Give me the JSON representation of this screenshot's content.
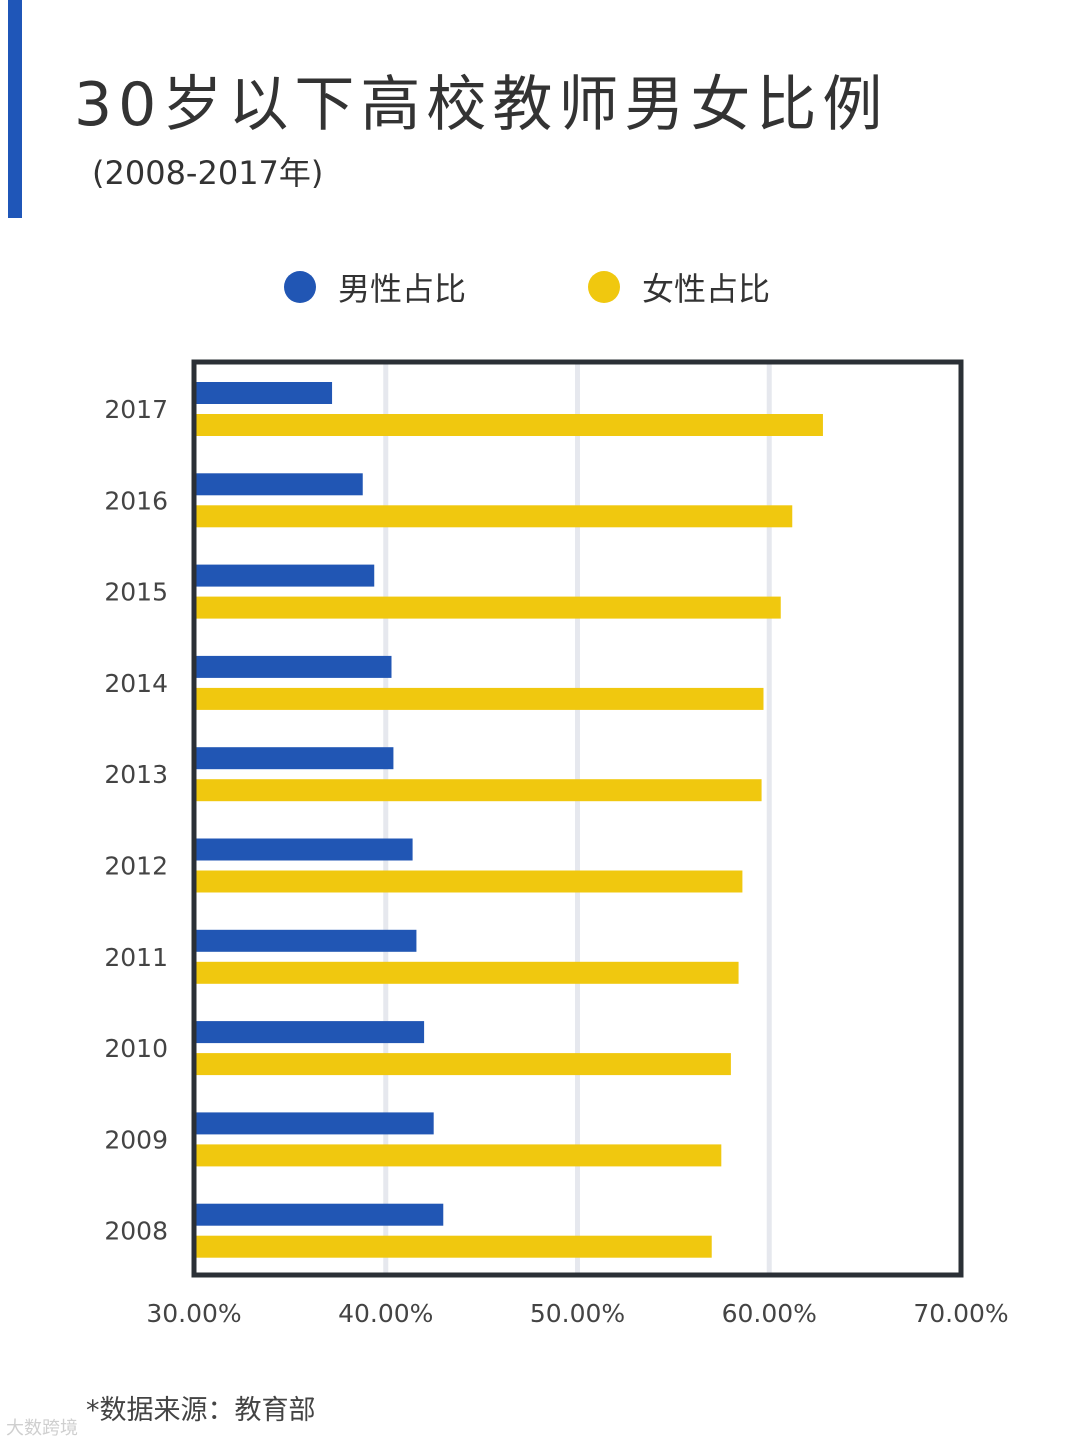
{
  "colors": {
    "accent": "#1f56b8",
    "male": "#2156b4",
    "female": "#f0c80f",
    "frame": "#2b3036",
    "grid": "#e6e8ee"
  },
  "chart_data": {
    "type": "bar",
    "orientation": "horizontal",
    "title": "30岁以下高校教师男女比例",
    "subtitle": "(2008-2017年)",
    "categories": [
      "2017",
      "2016",
      "2015",
      "2014",
      "2013",
      "2012",
      "2011",
      "2010",
      "2009",
      "2008"
    ],
    "series": [
      {
        "name": "男性占比",
        "values": [
          37.2,
          38.8,
          39.4,
          40.3,
          40.4,
          41.4,
          41.6,
          42.0,
          42.5,
          43.0
        ]
      },
      {
        "name": "女性占比",
        "values": [
          62.8,
          61.2,
          60.6,
          59.7,
          59.6,
          58.6,
          58.4,
          58.0,
          57.5,
          57.0
        ]
      }
    ],
    "xlim": [
      30,
      70
    ],
    "xticks": [
      "30.00%",
      "40.00%",
      "50.00%",
      "60.00%",
      "70.00%"
    ],
    "xtick_values": [
      30,
      40,
      50,
      60,
      70
    ],
    "grid": "vertical",
    "legend": "top-center"
  },
  "source": "*数据来源：教育部",
  "watermark": "大数跨境"
}
